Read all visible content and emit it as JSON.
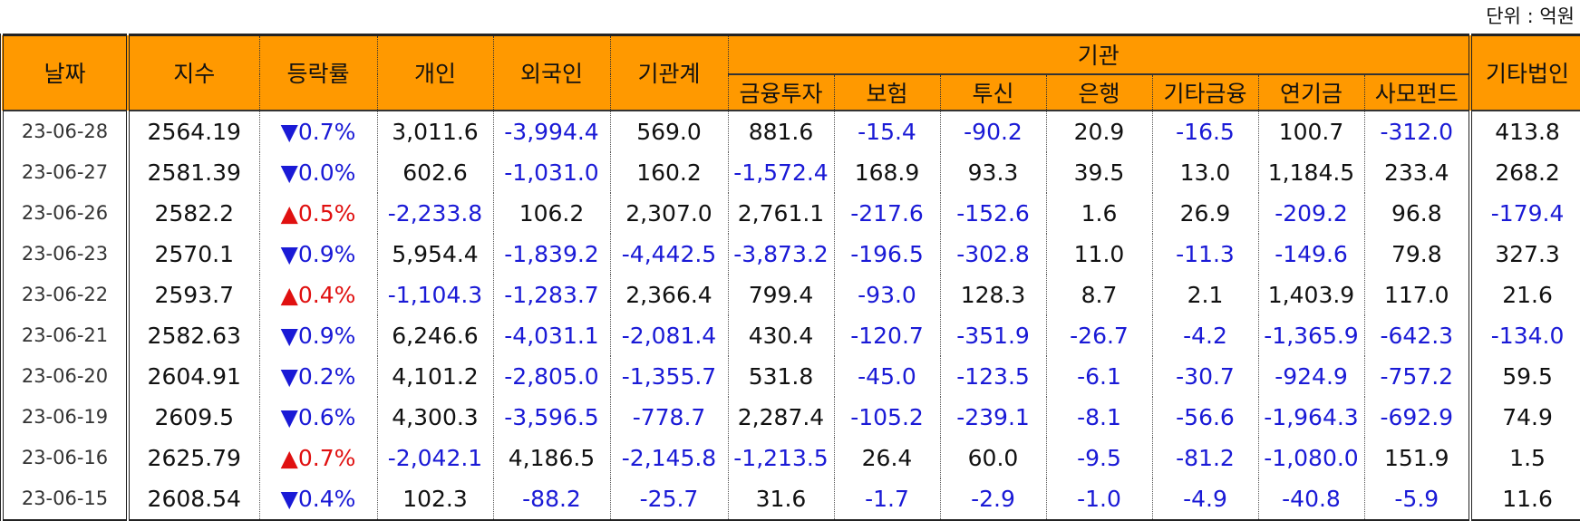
{
  "header": {
    "unit": "단위 : 억원"
  },
  "columns": {
    "date": "날짜",
    "index": "지수",
    "change": "등락률",
    "individual": "개인",
    "foreign": "외국인",
    "institution_total": "기관계",
    "institution": "기관",
    "institution_sub": [
      "금융투자",
      "보험",
      "투신",
      "은행",
      "기타금융",
      "연기금",
      "사모펀드"
    ],
    "other_corp": "기타법인"
  },
  "rows": [
    [
      "23-06-28",
      "2564.19",
      "▼0.7%",
      "3,011.6",
      "-3,994.4",
      "569.0",
      "881.6",
      "-15.4",
      "-90.2",
      "20.9",
      "-16.5",
      "100.7",
      "-312.0",
      "413.8"
    ],
    [
      "23-06-27",
      "2581.39",
      "▼0.0%",
      "602.6",
      "-1,031.0",
      "160.2",
      "-1,572.4",
      "168.9",
      "93.3",
      "39.5",
      "13.0",
      "1,184.5",
      "233.4",
      "268.2"
    ],
    [
      "23-06-26",
      "2582.2",
      "▲0.5%",
      "-2,233.8",
      "106.2",
      "2,307.0",
      "2,761.1",
      "-217.6",
      "-152.6",
      "1.6",
      "26.9",
      "-209.2",
      "96.8",
      "-179.4"
    ],
    [
      "23-06-23",
      "2570.1",
      "▼0.9%",
      "5,954.4",
      "-1,839.2",
      "-4,442.5",
      "-3,873.2",
      "-196.5",
      "-302.8",
      "11.0",
      "-11.3",
      "-149.6",
      "79.8",
      "327.3"
    ],
    [
      "23-06-22",
      "2593.7",
      "▲0.4%",
      "-1,104.3",
      "-1,283.7",
      "2,366.4",
      "799.4",
      "-93.0",
      "128.3",
      "8.7",
      "2.1",
      "1,403.9",
      "117.0",
      "21.6"
    ],
    [
      "23-06-21",
      "2582.63",
      "▼0.9%",
      "6,246.6",
      "-4,031.1",
      "-2,081.4",
      "430.4",
      "-120.7",
      "-351.9",
      "-26.7",
      "-4.2",
      "-1,365.9",
      "-642.3",
      "-134.0"
    ],
    [
      "23-06-20",
      "2604.91",
      "▼0.2%",
      "4,101.2",
      "-2,805.0",
      "-1,355.7",
      "531.8",
      "-45.0",
      "-123.5",
      "-6.1",
      "-30.7",
      "-924.9",
      "-757.2",
      "59.5"
    ],
    [
      "23-06-19",
      "2609.5",
      "▼0.6%",
      "4,300.3",
      "-3,596.5",
      "-778.7",
      "2,287.4",
      "-105.2",
      "-239.1",
      "-8.1",
      "-56.6",
      "-1,964.3",
      "-692.9",
      "74.9"
    ],
    [
      "23-06-16",
      "2625.79",
      "▲0.7%",
      "-2,042.1",
      "4,186.5",
      "-2,145.8",
      "-1,213.5",
      "26.4",
      "60.0",
      "-9.5",
      "-81.2",
      "-1,080.0",
      "151.9",
      "1.5"
    ],
    [
      "23-06-15",
      "2608.54",
      "▼0.4%",
      "102.3",
      "-88.2",
      "-25.7",
      "31.6",
      "-1.7",
      "-2.9",
      "-1.0",
      "-4.9",
      "-40.8",
      "-5.9",
      "11.6"
    ]
  ]
}
